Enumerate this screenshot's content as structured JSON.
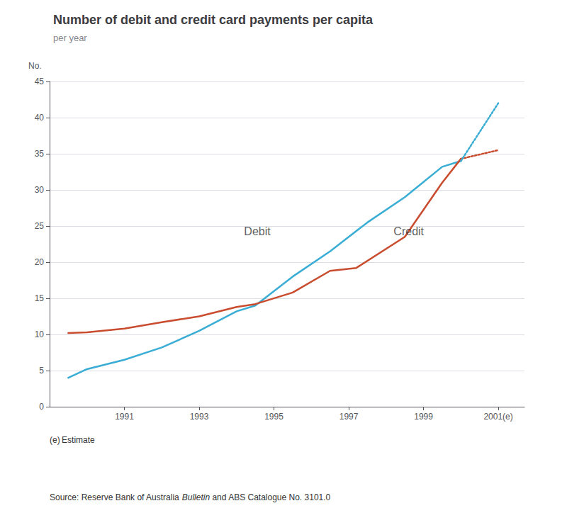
{
  "chart_data": {
    "type": "line",
    "title": "Number of debit and credit card payments per capita",
    "subtitle": "per year",
    "ylabel": "No.",
    "footnote": "(e) Estimate",
    "source": [
      {
        "text": "Source: Reserve Bank of Australia "
      },
      {
        "text": "Bulletin",
        "font_style": "italic"
      },
      {
        "text": " and ABS Catalogue No. 3101.0"
      }
    ],
    "series": [
      {
        "name": "Debit",
        "color": "#3AADD4",
        "line_style": "solid",
        "x": [
          1989.5,
          1990.0,
          1991.0,
          1992.0,
          1993.0,
          1994.0,
          1994.5,
          1995.5,
          1996.5,
          1997.5,
          1998.5,
          1999.5,
          2000.0
        ],
        "values": [
          4.0,
          5.2,
          6.5,
          8.2,
          10.5,
          13.2,
          14.0,
          18.0,
          21.5,
          25.5,
          29.0,
          33.2,
          34.0
        ]
      },
      {
        "name": "Credit",
        "color": "#C94C2E",
        "line_style": "solid",
        "x": [
          1989.5,
          1990.0,
          1991.0,
          1992.0,
          1993.0,
          1994.0,
          1994.5,
          1995.5,
          1996.5,
          1997.2,
          1998.5,
          1999.5,
          2000.0
        ],
        "values": [
          10.2,
          10.3,
          10.8,
          11.7,
          12.5,
          13.8,
          14.2,
          15.8,
          18.8,
          19.2,
          23.5,
          31.0,
          34.3
        ]
      },
      {
        "name": "Credit",
        "color": "#C94C2E",
        "line_style": "dotted",
        "x": [
          2000.0,
          2001.0
        ],
        "values": [
          34.3,
          35.5
        ]
      },
      {
        "name": "Debit",
        "color": "#3AADD4",
        "line_style": "dotted",
        "x": [
          2000.0,
          2001.0
        ],
        "values": [
          34.0,
          42.0
        ]
      }
    ],
    "annotations": [
      {
        "text": "Debit",
        "x": 1994.2,
        "y": 23.5
      },
      {
        "text": "Credit",
        "x": 1998.2,
        "y": 23.5
      }
    ],
    "xlim": [
      1989.0,
      2001.7
    ],
    "xticks": [
      1991,
      1993,
      1995,
      1997,
      1999,
      {
        "value": 2001.0,
        "label": "2001(e)"
      }
    ],
    "ylim": [
      0,
      45
    ],
    "yticks": [
      0,
      5,
      10,
      15,
      20,
      25,
      30,
      35,
      40,
      45
    ],
    "grid": true
  }
}
